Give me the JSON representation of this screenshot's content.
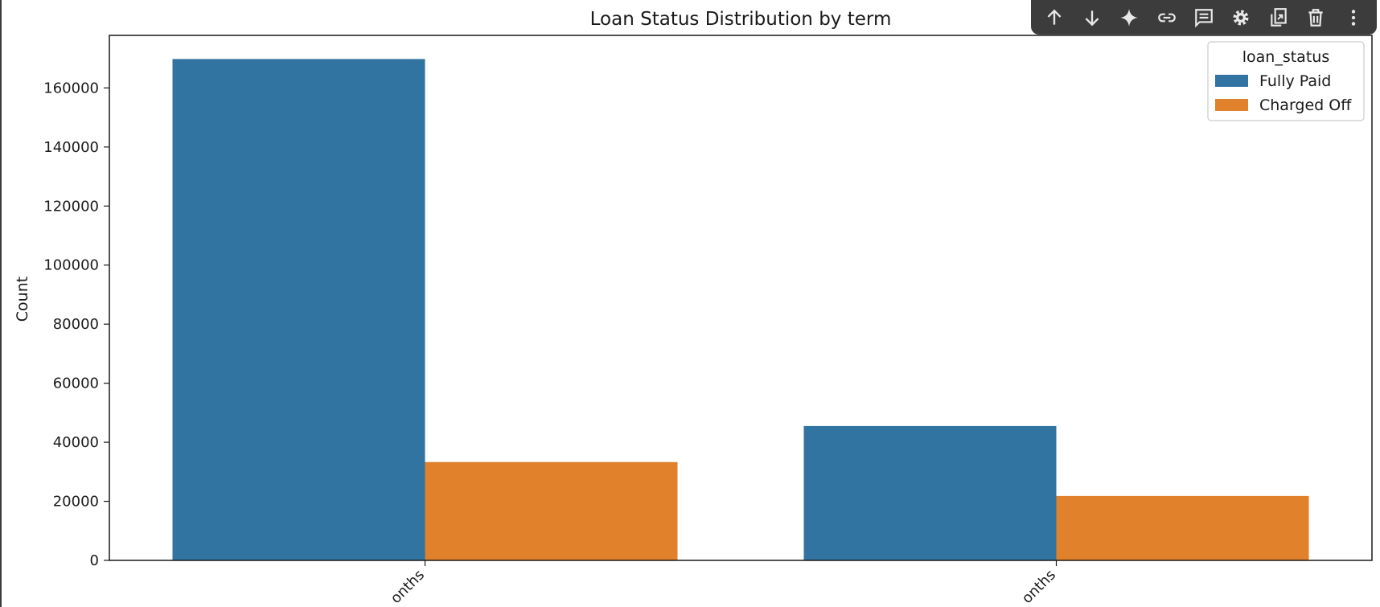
{
  "toolbar": {
    "items": [
      {
        "icon": "arrow-up-icon",
        "label": "Move cell up"
      },
      {
        "icon": "arrow-down-icon",
        "label": "Move cell down"
      },
      {
        "icon": "sparkle-icon",
        "label": "Gemini"
      },
      {
        "icon": "link-icon",
        "label": "Copy link to cell"
      },
      {
        "icon": "comment-icon",
        "label": "Add comment"
      },
      {
        "icon": "gear-icon",
        "label": "Open editor settings"
      },
      {
        "icon": "mirror-cell-icon",
        "label": "Mirror cell in tab"
      },
      {
        "icon": "trash-icon",
        "label": "Delete cell"
      },
      {
        "icon": "more-vert-icon",
        "label": "More cell actions"
      }
    ],
    "icon_color": "#e8e8e8",
    "background": "#3c3c3c"
  },
  "chart_data": {
    "type": "bar",
    "title": "Loan Status Distribution by term",
    "xlabel": "",
    "ylabel": "Count",
    "categories": [
      "onths",
      "onths"
    ],
    "series": [
      {
        "name": "Fully Paid",
        "color": "#3274a1",
        "values": [
          169800,
          45500
        ]
      },
      {
        "name": "Charged Off",
        "color": "#e1812c",
        "values": [
          33300,
          21800
        ]
      }
    ],
    "ylim": [
      0,
      177800
    ],
    "yticks": [
      0,
      20000,
      40000,
      60000,
      80000,
      100000,
      120000,
      140000,
      160000
    ],
    "ytick_labels": [
      "0",
      "20000",
      "40000",
      "60000",
      "80000",
      "100000",
      "120000",
      "140000",
      "160000"
    ],
    "legend": {
      "title": "loan_status",
      "placement": "top-right",
      "entries": [
        "Fully Paid",
        "Charged Off"
      ]
    },
    "grid": false,
    "xtick_rotation": -45
  }
}
